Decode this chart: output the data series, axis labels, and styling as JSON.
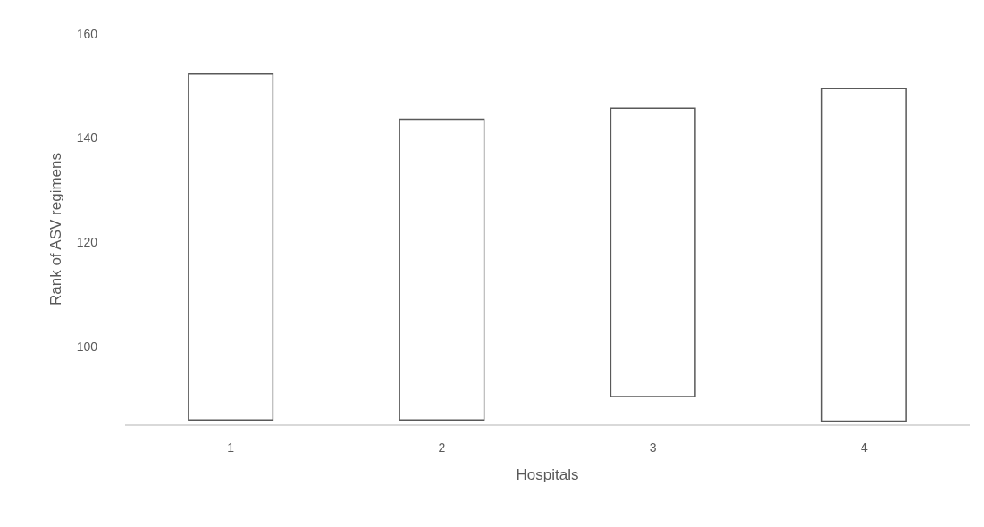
{
  "chart_data": {
    "type": "bar",
    "xlabel": "Hospitals",
    "ylabel": "Rank of ASV regimens",
    "categories": [
      "1",
      "2",
      "3",
      "4"
    ],
    "base": [
      85.8,
      85.8,
      90.3,
      85.6
    ],
    "values": [
      66.5,
      57.8,
      55.4,
      63.9
    ],
    "color": "#ffffff",
    "ylim": [
      85,
      160
    ],
    "yticks": [
      100,
      120,
      140,
      160
    ],
    "grid": false,
    "legend": false
  }
}
